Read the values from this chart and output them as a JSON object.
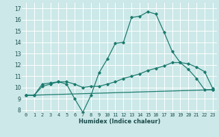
{
  "xlabel": "Humidex (Indice chaleur)",
  "xlim": [
    -0.5,
    23.5
  ],
  "ylim": [
    7.8,
    17.5
  ],
  "yticks": [
    8,
    9,
    10,
    11,
    12,
    13,
    14,
    15,
    16,
    17
  ],
  "xticks": [
    0,
    1,
    2,
    3,
    4,
    5,
    6,
    7,
    8,
    9,
    10,
    11,
    12,
    13,
    14,
    15,
    16,
    17,
    18,
    19,
    20,
    21,
    22,
    23
  ],
  "background_color": "#cce8e8",
  "grid_color": "#ffffff",
  "line_color": "#1a7a6e",
  "series1_x": [
    0,
    1,
    2,
    3,
    4,
    5,
    6,
    7,
    8,
    9,
    10,
    11,
    12,
    13,
    14,
    15,
    16,
    17,
    18,
    19,
    20,
    21,
    22,
    23
  ],
  "series1_y": [
    9.3,
    9.3,
    10.3,
    10.4,
    10.5,
    10.3,
    9.0,
    7.8,
    9.3,
    11.3,
    12.5,
    13.9,
    14.0,
    16.2,
    16.3,
    16.7,
    16.5,
    14.9,
    13.2,
    12.2,
    11.6,
    10.8,
    9.8,
    9.8
  ],
  "series2_x": [
    0,
    1,
    2,
    3,
    4,
    5,
    6,
    7,
    8,
    9,
    10,
    11,
    12,
    13,
    14,
    15,
    16,
    17,
    18,
    19,
    20,
    21,
    22,
    23
  ],
  "series2_y": [
    9.3,
    9.3,
    10.1,
    10.3,
    10.5,
    10.5,
    10.3,
    10.0,
    10.1,
    10.1,
    10.3,
    10.5,
    10.8,
    11.0,
    11.2,
    11.5,
    11.7,
    11.9,
    12.2,
    12.2,
    12.1,
    11.8,
    11.4,
    9.9
  ],
  "series3_x": [
    0,
    23
  ],
  "series3_y": [
    9.3,
    9.8
  ],
  "marker": "D",
  "markersize": 1.8,
  "linewidth": 0.9,
  "tick_fontsize": 5.0,
  "xlabel_fontsize": 6.0
}
